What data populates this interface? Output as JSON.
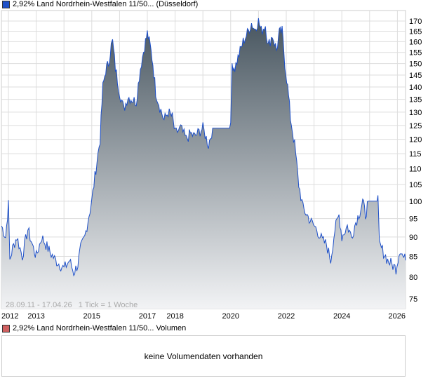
{
  "header": {
    "title": "2,92% Land Nordrhein-Westfalen 11/50... (Düsseldorf)",
    "swatch_color": "#1e50c8"
  },
  "volume": {
    "title": "2,92% Land Nordrhein-Westfalen 11/50... Volumen",
    "swatch_color": "#d06060",
    "empty_text": "keine Volumendaten vorhanden"
  },
  "chart_data": {
    "type": "area",
    "title": "2,92% Land Nordrhein-Westfalen 11/50... (Düsseldorf)",
    "range_note": "28.09.11 - 17.04.26   1 Tick = 1 Woche",
    "y_scale": "log",
    "ylim": [
      72,
      174
    ],
    "xlim": [
      2011.75,
      2026.3
    ],
    "y_ticks": [
      75,
      80,
      85,
      90,
      95,
      100,
      105,
      110,
      115,
      120,
      125,
      130,
      135,
      140,
      145,
      150,
      155,
      160,
      165,
      170
    ],
    "x_ticks": [
      "2012",
      "2013",
      "2015",
      "2017",
      "2018",
      "2020",
      "2022",
      "2024",
      "2026"
    ],
    "x_tick_values": [
      2012,
      2013,
      2015,
      2017,
      2018,
      2020,
      2022,
      2024,
      2026
    ],
    "line_color": "#1e50c8",
    "fill_top": "#47555f",
    "fill_bottom": "#f2f3f5",
    "x": [
      2011.75,
      2011.9,
      2012.0,
      2012.05,
      2012.15,
      2012.3,
      2012.5,
      2012.7,
      2012.9,
      2013.0,
      2013.2,
      2013.35,
      2013.5,
      2013.7,
      2013.85,
      2014.0,
      2014.2,
      2014.35,
      2014.5,
      2014.6,
      2014.75,
      2014.9,
      2015.0,
      2015.15,
      2015.3,
      2015.4,
      2015.5,
      2015.6,
      2015.7,
      2015.75,
      2015.85,
      2016.0,
      2016.15,
      2016.3,
      2016.45,
      2016.6,
      2016.75,
      2016.9,
      2017.0,
      2017.1,
      2017.2,
      2017.3,
      2017.45,
      2017.6,
      2017.75,
      2017.9,
      2018.0,
      2018.2,
      2018.4,
      2018.55,
      2018.7,
      2018.9,
      2019.0,
      2019.2,
      2019.35,
      2019.45,
      2019.6,
      2019.8,
      2020.0,
      2020.05,
      2020.15,
      2020.3,
      2020.45,
      2020.6,
      2020.75,
      2020.85,
      2021.0,
      2021.1,
      2021.25,
      2021.35,
      2021.5,
      2021.65,
      2021.75,
      2021.85,
      2021.95,
      2022.05,
      2022.15,
      2022.3,
      2022.45,
      2022.6,
      2022.75,
      2022.9,
      2023.1,
      2023.3,
      2023.45,
      2023.6,
      2023.75,
      2023.9,
      2024.0,
      2024.2,
      2024.35,
      2024.5,
      2024.65,
      2024.75,
      2024.85,
      2024.95,
      2025.0,
      2025.2,
      2025.3,
      2025.35,
      2025.5,
      2025.65,
      2025.8,
      2025.95,
      2026.1,
      2026.2,
      2026.3
    ],
    "values": [
      93,
      90,
      99,
      84,
      87,
      90,
      85,
      92,
      87,
      85,
      90,
      88,
      86,
      84,
      83,
      82,
      84,
      81,
      83,
      87,
      90,
      96,
      100,
      110,
      120,
      140,
      147,
      150,
      158,
      160,
      148,
      138,
      131,
      136,
      135,
      134,
      148,
      158,
      164,
      158,
      150,
      138,
      132,
      127,
      130,
      128,
      122,
      124,
      120,
      122,
      121,
      123,
      124,
      118,
      124,
      124,
      124,
      124,
      124,
      150,
      148,
      154,
      160,
      164,
      169,
      166,
      170,
      165,
      168,
      158,
      163,
      156,
      164,
      165,
      150,
      140,
      128,
      118,
      105,
      98,
      96,
      94,
      92,
      89,
      88,
      84,
      92,
      96,
      90,
      93,
      90,
      94,
      97,
      100,
      96,
      100,
      100,
      100,
      100,
      88,
      86,
      84,
      83,
      82,
      87,
      85,
      84
    ]
  }
}
